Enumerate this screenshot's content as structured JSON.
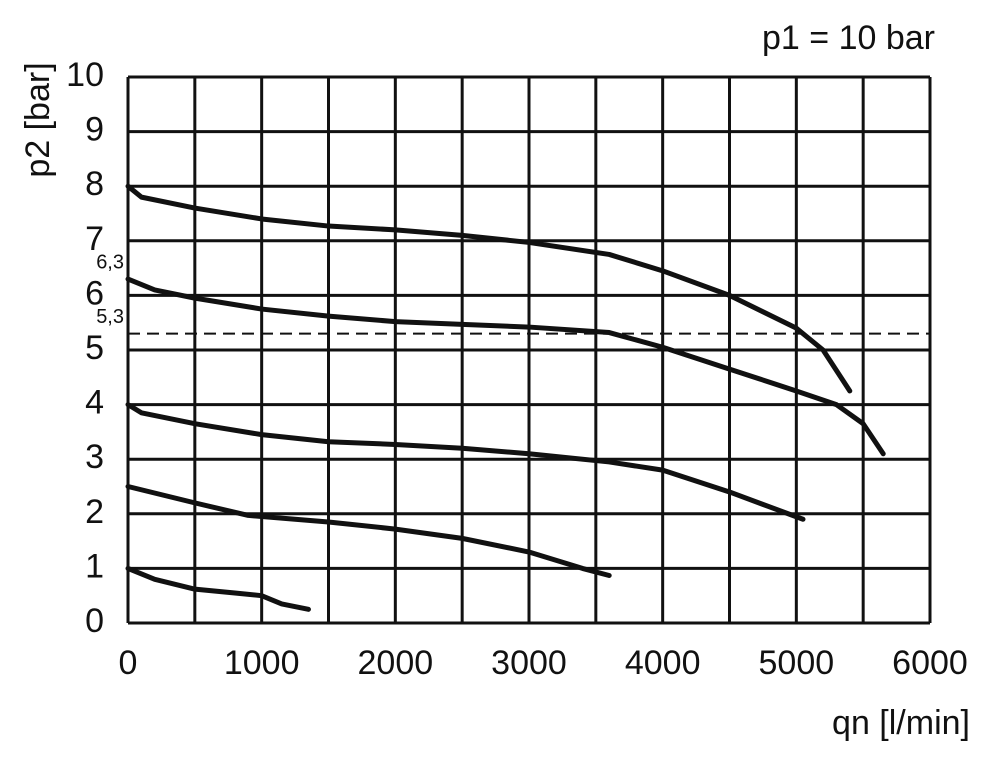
{
  "chart_data": {
    "type": "line",
    "title": "p1 = 10 bar",
    "x_label": "qn [l/min]",
    "y_label": "p2 [bar]",
    "xlim": [
      0,
      6000
    ],
    "xticks": [
      0,
      1000,
      2000,
      3000,
      4000,
      5000,
      6000
    ],
    "x_minor_grid": [
      500,
      1500,
      2500,
      3500,
      4500,
      5500
    ],
    "ylim": [
      0,
      10
    ],
    "yticks": [
      0,
      1,
      2,
      3,
      4,
      5,
      6,
      7,
      8,
      9,
      10
    ],
    "grid": true,
    "marked_levels": [
      {
        "value": 6.3,
        "label": "6,3",
        "dashed": false
      },
      {
        "value": 5.3,
        "label": "5,3",
        "dashed": true
      }
    ],
    "series": [
      {
        "color": "#111111",
        "x": [
          0,
          100,
          500,
          1000,
          1500,
          2000,
          2500,
          3000,
          3600,
          4000,
          4500,
          5000,
          5200,
          5400
        ],
        "values": [
          8.0,
          7.8,
          7.6,
          7.4,
          7.27,
          7.2,
          7.1,
          6.97,
          6.75,
          6.45,
          6.0,
          5.4,
          5.0,
          4.25
        ]
      },
      {
        "color": "#111111",
        "x": [
          0,
          200,
          500,
          1000,
          1500,
          2000,
          2500,
          3000,
          3600,
          4000,
          4500,
          5000,
          5300,
          5500,
          5650
        ],
        "values": [
          6.3,
          6.1,
          5.95,
          5.75,
          5.62,
          5.52,
          5.47,
          5.42,
          5.32,
          5.05,
          4.65,
          4.25,
          4.0,
          3.65,
          3.1
        ]
      },
      {
        "color": "#111111",
        "x": [
          0,
          100,
          500,
          1000,
          1500,
          2000,
          2500,
          3000,
          3600,
          4000,
          4500,
          5050
        ],
        "values": [
          4.0,
          3.85,
          3.65,
          3.45,
          3.32,
          3.27,
          3.2,
          3.1,
          2.95,
          2.8,
          2.4,
          1.9
        ]
      },
      {
        "color": "#111111",
        "x": [
          0,
          500,
          900,
          1500,
          2000,
          2500,
          3000,
          3400,
          3600
        ],
        "values": [
          2.5,
          2.2,
          1.97,
          1.85,
          1.72,
          1.55,
          1.3,
          1.0,
          0.87
        ]
      },
      {
        "color": "#111111",
        "x": [
          0,
          200,
          500,
          800,
          1000,
          1150,
          1350
        ],
        "values": [
          1.0,
          0.8,
          0.62,
          0.55,
          0.5,
          0.35,
          0.25
        ]
      }
    ]
  }
}
